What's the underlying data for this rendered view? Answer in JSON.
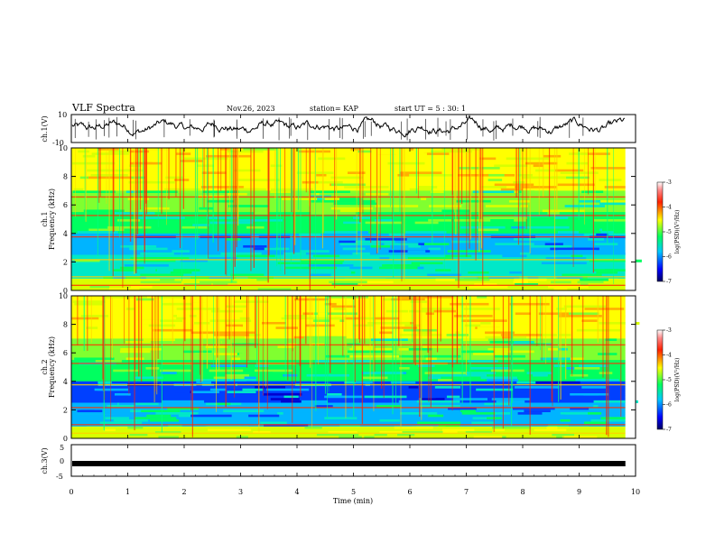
{
  "chart_data": [
    {
      "type": "line",
      "panel": "ch1-waveform",
      "title": "VLF Spectra",
      "date": "Nov.26, 2023",
      "station": "station= KAP",
      "start_ut": "start UT = 5 : 30: 1",
      "ylabel": "ch.1(V)",
      "ylim": [
        -10,
        10
      ],
      "y_ticks": [
        "10",
        "-10"
      ],
      "xlim": [
        0,
        10
      ],
      "description_series": "noisy waveform oscillating roughly between -6 and 8 V over 0-9.8 min"
    },
    {
      "type": "heatmap",
      "panel": "ch1-spectrogram",
      "ylabel": "ch.1 Frequency (kHz)",
      "ylabel_line1": "ch.1",
      "ylabel_line2": "Frequency (kHz)",
      "ylim": [
        0,
        10
      ],
      "y_ticks": [
        "0",
        "2",
        "4",
        "6",
        "8",
        "10"
      ],
      "xlim": [
        0,
        10
      ],
      "colorbar": {
        "label": "log(PSD)(V²/Hz)",
        "range": [
          -7,
          -3
        ],
        "ticks": [
          "-3",
          "-4",
          "-5",
          "-6",
          "-7"
        ]
      }
    },
    {
      "type": "heatmap",
      "panel": "ch2-spectrogram",
      "ylabel": "ch.2 Frequency (kHz)",
      "ylabel_line1": "ch.2",
      "ylabel_line2": "Frequency (kHz)",
      "ylim": [
        0,
        10
      ],
      "y_ticks": [
        "0",
        "2",
        "4",
        "6",
        "8",
        "10"
      ],
      "xlim": [
        0,
        10
      ],
      "colorbar": {
        "label": "log(PSD)(V²/Hz)",
        "range": [
          -7,
          -3
        ],
        "ticks": [
          "-3",
          "-4",
          "-5",
          "-6",
          "-7"
        ]
      }
    },
    {
      "type": "line",
      "panel": "ch3-waveform",
      "ylabel": "ch.3(V)",
      "ylim": [
        -5,
        5
      ],
      "y_ticks": [
        "5",
        "0",
        "-5"
      ],
      "xlim": [
        0,
        10
      ],
      "x_ticks": [
        "0",
        "1",
        "2",
        "3",
        "4",
        "5",
        "6",
        "7",
        "8",
        "9",
        "10"
      ],
      "xlabel": "Time (min)",
      "series_value": -1,
      "description_series": "near-constant thick band around -1 V"
    }
  ]
}
